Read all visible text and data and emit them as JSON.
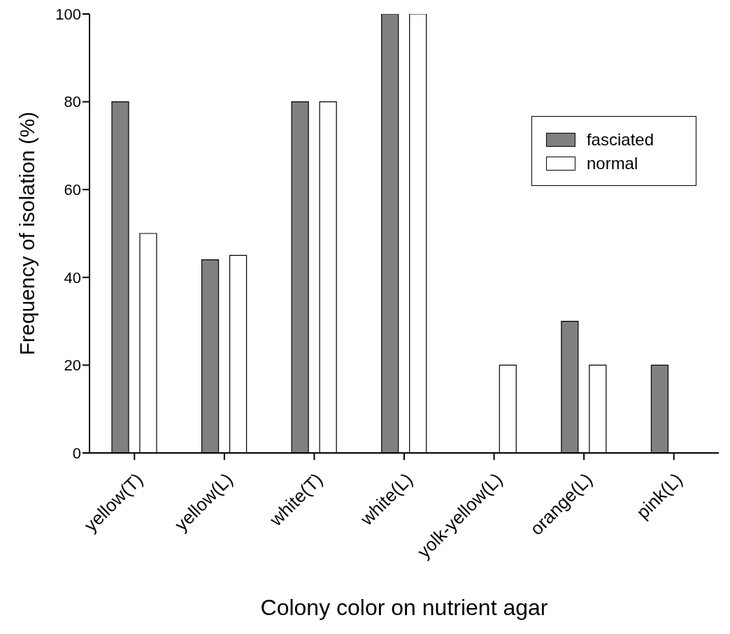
{
  "chart_data": {
    "type": "bar",
    "xlabel": "Colony color on nutrient agar",
    "ylabel": "Frequency of isolation (%)",
    "categories": [
      "yellow(T)",
      "yellow(L)",
      "white(T)",
      "white(L)",
      "yolk-yellow(L)",
      "orange(L)",
      "pink(L)"
    ],
    "series": [
      {
        "name": "fasciated",
        "color": "#808080",
        "values": [
          80,
          44,
          80,
          100,
          0,
          30,
          20
        ]
      },
      {
        "name": "normal",
        "color": "#ffffff",
        "values": [
          50,
          45,
          80,
          100,
          20,
          20,
          0
        ]
      }
    ],
    "ylim": [
      0,
      100
    ],
    "yticks": [
      0,
      20,
      40,
      60,
      80,
      100
    ],
    "grid": false,
    "legend": "top right"
  }
}
